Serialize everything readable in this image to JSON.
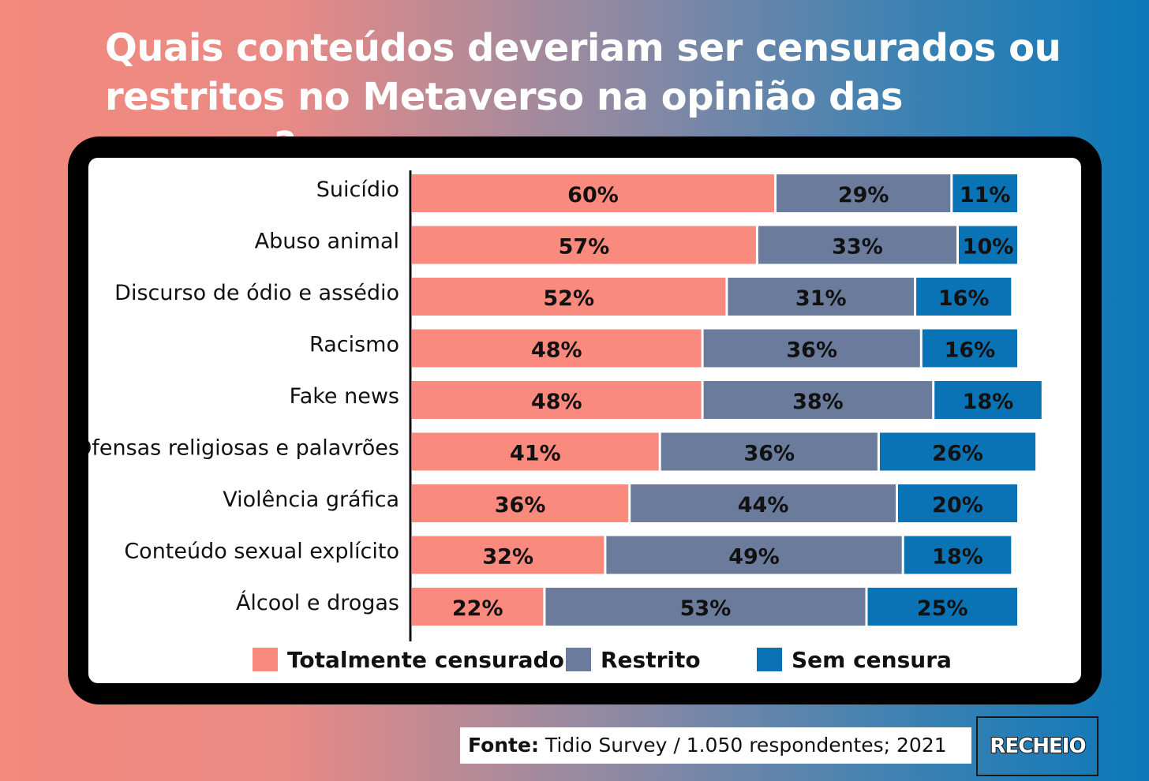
{
  "title": "Quais conteúdos deveriam ser censurados ou restritos no Metaverso na opinião das pessoas?",
  "source": {
    "prefix": "Fonte:",
    "text": "Tidio Survey / 1.050 respondentes; 2021"
  },
  "logo": "RECHEIO",
  "chart_data": {
    "type": "bar",
    "orientation": "horizontal",
    "stacked": true,
    "categories": [
      "Suicídio",
      "Abuso animal",
      "Discurso de ódio e assédio",
      "Racismo",
      "Fake news",
      "Ofensas religiosas e palavrões",
      "Violência gráfica",
      "Conteúdo sexual explícito",
      "Álcool e drogas"
    ],
    "series": [
      {
        "name": "Totalmente censurado",
        "color": "#fa8a7d",
        "values": [
          60,
          57,
          52,
          48,
          48,
          41,
          36,
          32,
          22
        ]
      },
      {
        "name": "Restrito",
        "color": "#6b7b9c",
        "values": [
          29,
          33,
          31,
          36,
          38,
          36,
          44,
          49,
          53
        ]
      },
      {
        "name": "Sem censura",
        "color": "#0a73b5",
        "values": [
          11,
          10,
          16,
          16,
          18,
          26,
          20,
          18,
          25
        ]
      }
    ],
    "value_suffix": "%",
    "legend_position": "bottom",
    "grid": false,
    "xlim": [
      0,
      100
    ]
  }
}
